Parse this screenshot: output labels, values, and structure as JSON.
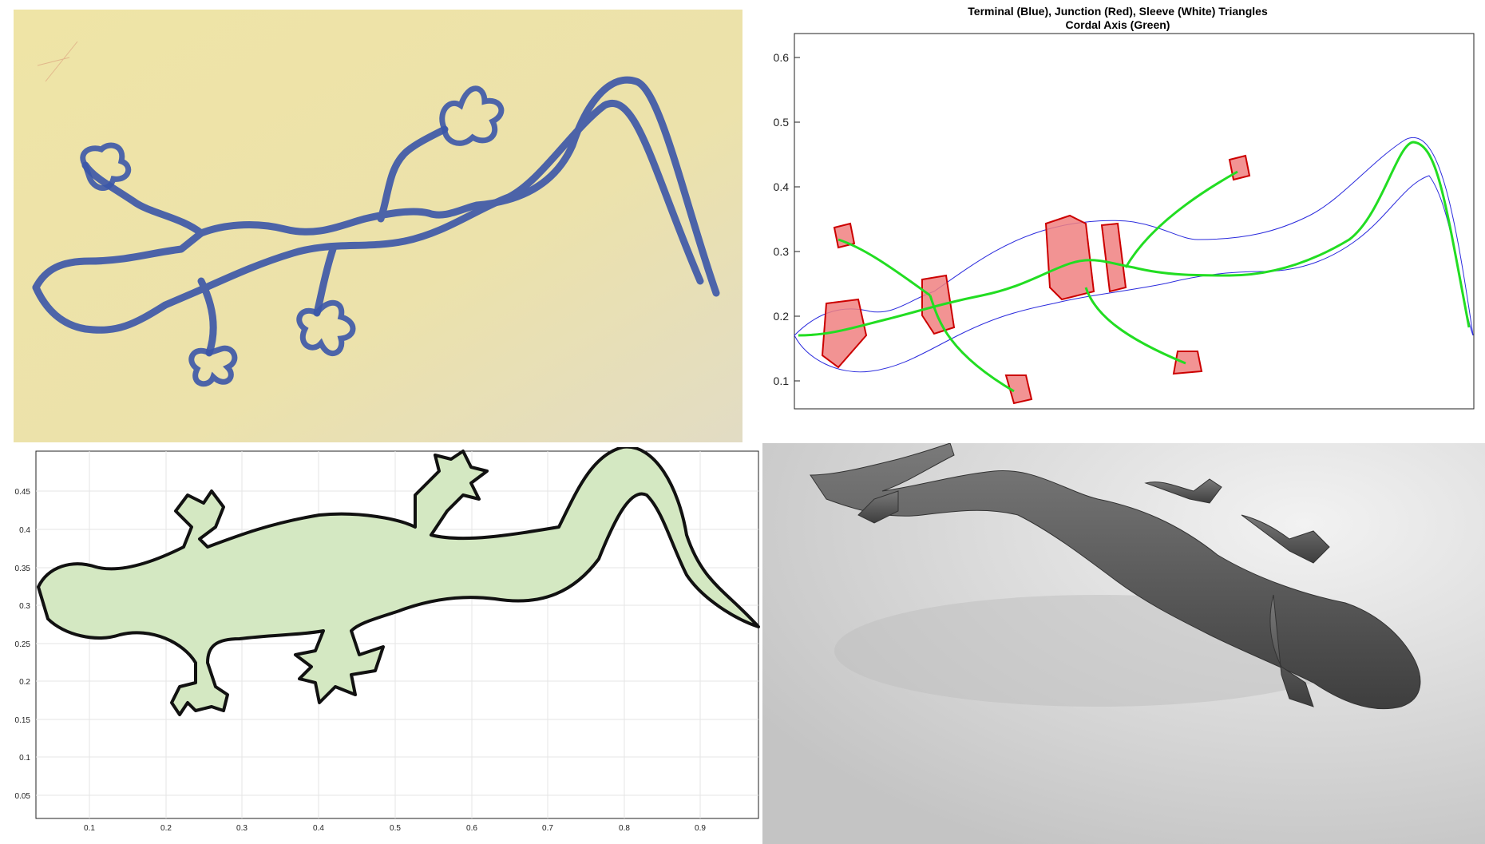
{
  "panel_drawing": {
    "label": ""
  },
  "panel_triangulation": {
    "title_line1": "Terminal (Blue), Junction (Red), Sleeve (White) Triangles",
    "title_line2": "Cordal Axis (Green)",
    "y_ticks": [
      "0.6",
      "0.5",
      "0.4",
      "0.3",
      "0.2",
      "0.1"
    ],
    "colors": {
      "terminal": "#2b2bdd",
      "junction": "#f08080",
      "axis": "#22dd22"
    }
  },
  "panel_mesh": {
    "y_ticks": [
      "0.45",
      "0.4",
      "0.35",
      "0.3",
      "0.25",
      "0.2",
      "0.15",
      "0.1",
      "0.05"
    ],
    "x_ticks": [
      "0.1",
      "0.2",
      "0.3",
      "0.4",
      "0.5",
      "0.6",
      "0.7",
      "0.8",
      "0.9"
    ],
    "colors": {
      "fill": "#d4e8c2",
      "edge": "#111111"
    }
  },
  "panel_render": {
    "colors": {
      "body": "#555555",
      "background": "#dcdcdc"
    }
  }
}
